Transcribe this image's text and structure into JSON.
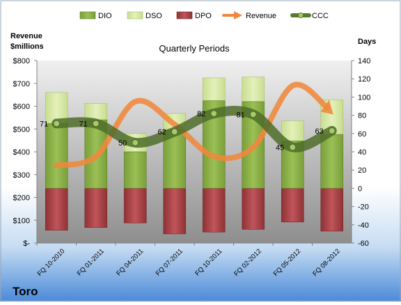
{
  "chart_data": {
    "type": "bar",
    "title": "Quarterly Periods",
    "company": "Toro",
    "left_axis": {
      "label_line1": "Revenue",
      "label_line2": "$millions",
      "ylim": [
        0,
        800
      ],
      "ticks": [
        0,
        100,
        200,
        300,
        400,
        500,
        600,
        700,
        800
      ],
      "tick_labels": [
        "$-",
        "$100",
        "$200",
        "$300",
        "$400",
        "$500",
        "$600",
        "$700",
        "$800"
      ]
    },
    "right_axis": {
      "label": "Days",
      "ylim": [
        -60,
        140
      ],
      "ticks": [
        -60,
        -40,
        -20,
        0,
        20,
        40,
        60,
        80,
        100,
        120,
        140
      ],
      "tick_labels": [
        "-60",
        "-40",
        "-20",
        "0",
        "20",
        "40",
        "60",
        "80",
        "100",
        "120",
        "140"
      ]
    },
    "categories": [
      "FQ 10-2010",
      "FQ 01-2011",
      "FQ 04-2011",
      "FQ 07-2011",
      "FQ 10-2011",
      "FQ 02-2012",
      "FQ 05-2012",
      "FQ 08-2012"
    ],
    "legend": [
      "DIO",
      "DSO",
      "DPO",
      "Revenue",
      "CCC"
    ],
    "legend_position": "top",
    "grid": false,
    "series": [
      {
        "name": "DIO",
        "axis": "days",
        "color": "#8db04a",
        "values": [
          71,
          75,
          40,
          64,
          96,
          95,
          52,
          59
        ]
      },
      {
        "name": "DSO",
        "axis": "days",
        "color": "#d9eaa8",
        "values": [
          34,
          18,
          20,
          18,
          25,
          27,
          22,
          38
        ]
      },
      {
        "name": "DPO",
        "axis": "days",
        "color": "#b5464b",
        "values": [
          -46,
          -43,
          -38,
          -50,
          -48,
          -45,
          -37,
          -47
        ]
      },
      {
        "name": "Revenue",
        "axis": "money",
        "color": "#f0883c",
        "values": [
          340,
          380,
          620,
          520,
          380,
          420,
          690,
          570
        ]
      },
      {
        "name": "CCC",
        "axis": "days",
        "color": "#6b8a40",
        "values": [
          71,
          71,
          50,
          62,
          82,
          81,
          45,
          63
        ],
        "labels": [
          "71",
          "71",
          "50",
          "62",
          "82",
          "81",
          "45",
          "63"
        ]
      }
    ],
    "colors": {
      "dio": "#8db04a",
      "dso": "#d9eaa8",
      "dpo": "#b5464b",
      "revenue": "#f0883c",
      "ccc": "#6b8a40",
      "plot_bg_top": "#ececec",
      "plot_bg_bottom": "#9a9a9a",
      "page_bg_top": "#ffffff",
      "page_bg_bottom": "#4a8ad8"
    }
  }
}
